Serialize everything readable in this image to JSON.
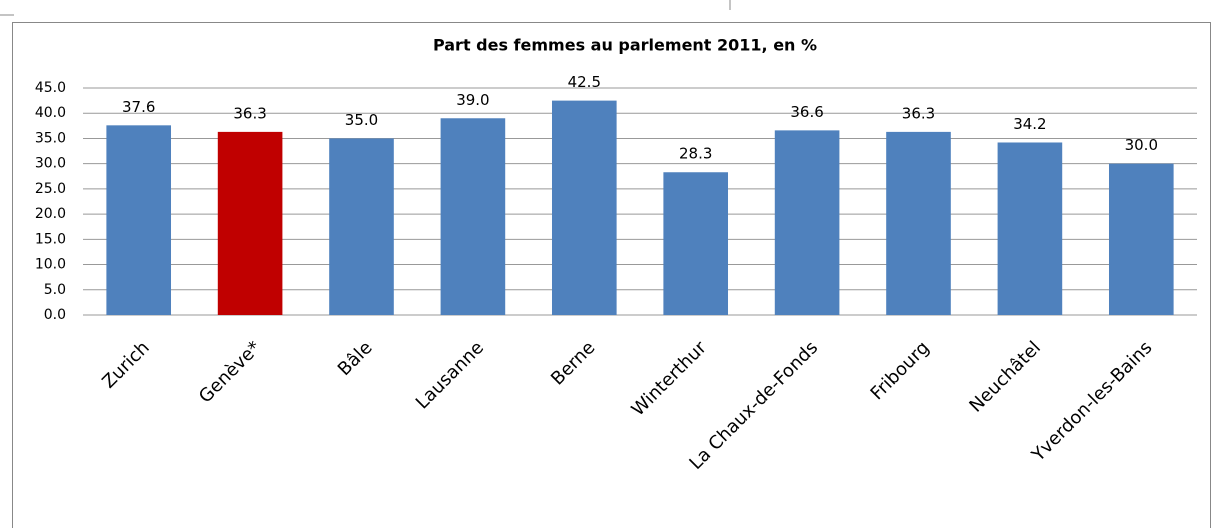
{
  "chart_data": {
    "type": "bar",
    "title": "Part des femmes au parlement  2011, en %",
    "categories": [
      "Zurich",
      "Genève*",
      "Bâle",
      "Lausanne",
      "Berne",
      "Winterthur",
      "La Chaux-de-Fonds",
      "Fribourg",
      "Neuchâtel",
      "Yverdon-les-Bains"
    ],
    "values": [
      37.6,
      36.3,
      35.0,
      39.0,
      42.5,
      28.3,
      36.6,
      36.3,
      34.2,
      30.0
    ],
    "value_labels": [
      "37.6",
      "36.3",
      "35.0",
      "39.0",
      "42.5",
      "28.3",
      "36.6",
      "36.3",
      "34.2",
      "30.0"
    ],
    "colors": [
      "#4f81bd",
      "#c00000",
      "#4f81bd",
      "#4f81bd",
      "#4f81bd",
      "#4f81bd",
      "#4f81bd",
      "#4f81bd",
      "#4f81bd",
      "#4f81bd"
    ],
    "ylim": [
      0,
      45
    ],
    "yticks": [
      {
        "value": 0,
        "label": "0.0"
      },
      {
        "value": 5,
        "label": "5.0"
      },
      {
        "value": 10,
        "label": "10.0"
      },
      {
        "value": 15,
        "label": "15.0"
      },
      {
        "value": 20,
        "label": "20.0"
      },
      {
        "value": 25,
        "label": "25.0"
      },
      {
        "value": 30,
        "label": "30.0"
      },
      {
        "value": 35,
        "label": "35.0"
      },
      {
        "value": 40,
        "label": "40.0"
      },
      {
        "value": 45,
        "label": "45.0"
      }
    ],
    "grid": true
  }
}
